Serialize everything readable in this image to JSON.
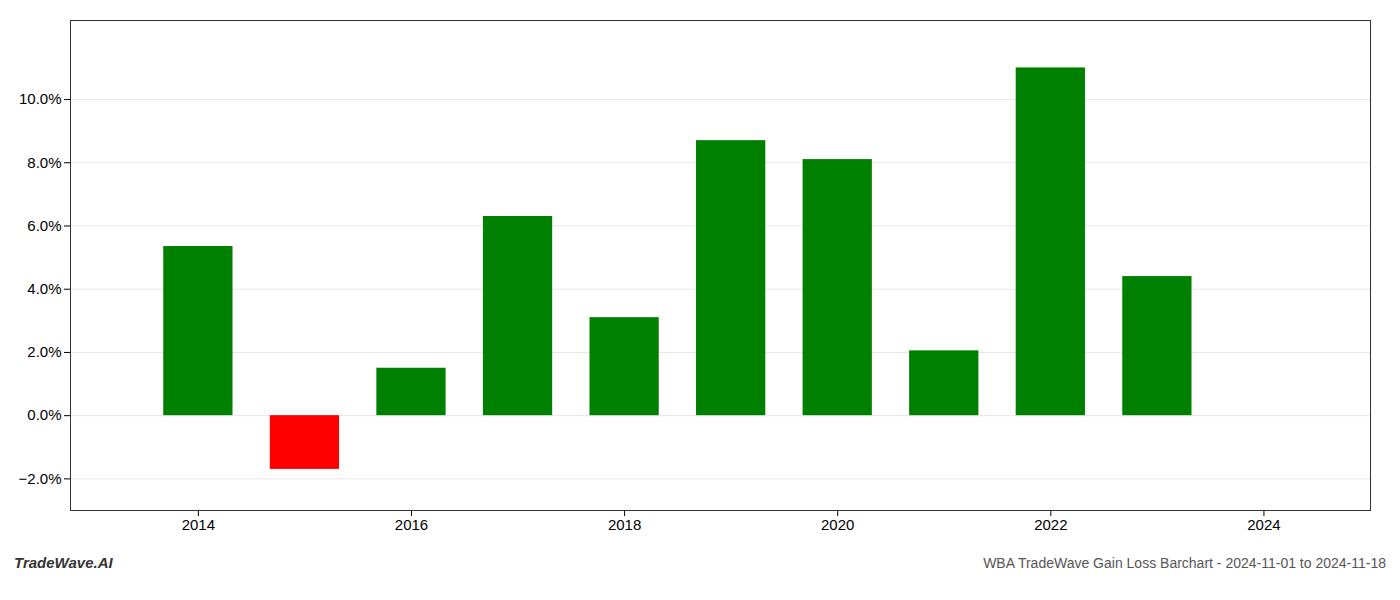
{
  "chart_data": {
    "type": "bar",
    "title": "WBA TradeWave Gain Loss Barchart - 2024-11-01 to 2024-11-18",
    "annotations": [
      "TradeWave.AI"
    ],
    "x": [
      2014,
      2015,
      2016,
      2017,
      2018,
      2019,
      2020,
      2021,
      2022,
      2023
    ],
    "values": [
      0.0535,
      -0.017,
      0.015,
      0.063,
      0.031,
      0.087,
      0.081,
      0.0205,
      0.11,
      0.044
    ],
    "colors": [
      "#008000",
      "#ff0000",
      "#008000",
      "#008000",
      "#008000",
      "#008000",
      "#008000",
      "#008000",
      "#008000",
      "#008000"
    ],
    "xlim": [
      2012.8,
      2025.0
    ],
    "xticks": [
      2014,
      2016,
      2018,
      2020,
      2022,
      2024
    ],
    "ylim": [
      -0.03,
      0.125
    ],
    "yticks": [
      {
        "value": -0.02,
        "label": "−2.0%"
      },
      {
        "value": 0.0,
        "label": "0.0%"
      },
      {
        "value": 0.02,
        "label": "2.0%"
      },
      {
        "value": 0.04,
        "label": "4.0%"
      },
      {
        "value": 0.06,
        "label": "6.0%"
      },
      {
        "value": 0.08,
        "label": "8.0%"
      },
      {
        "value": 0.1,
        "label": "10.0%"
      }
    ],
    "grid": true
  }
}
